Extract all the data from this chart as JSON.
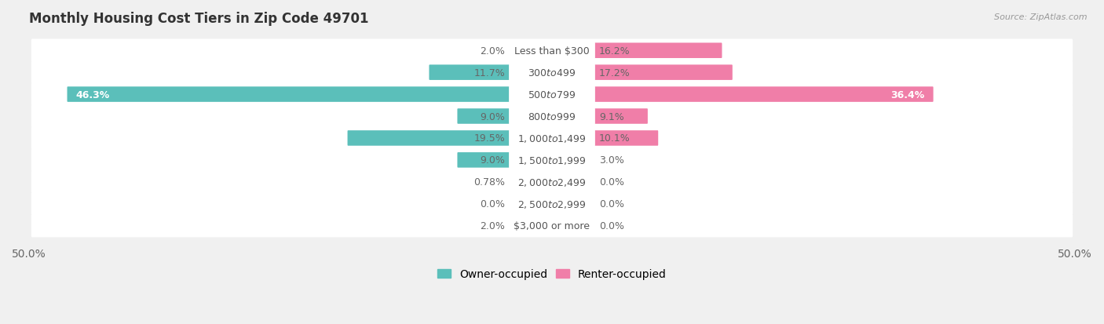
{
  "title": "Monthly Housing Cost Tiers in Zip Code 49701",
  "source": "Source: ZipAtlas.com",
  "categories": [
    "Less than $300",
    "$300 to $499",
    "$500 to $799",
    "$800 to $999",
    "$1,000 to $1,499",
    "$1,500 to $1,999",
    "$2,000 to $2,499",
    "$2,500 to $2,999",
    "$3,000 or more"
  ],
  "owner_values": [
    2.0,
    11.7,
    46.3,
    9.0,
    19.5,
    9.0,
    0.78,
    0.0,
    2.0
  ],
  "renter_values": [
    16.2,
    17.2,
    36.4,
    9.1,
    10.1,
    3.0,
    0.0,
    0.0,
    0.0
  ],
  "owner_color": "#5BBFBA",
  "renter_color": "#F07EA8",
  "owner_label": "Owner-occupied",
  "renter_label": "Renter-occupied",
  "xlim": 50.0,
  "background_color": "#f0f0f0",
  "bar_background": "#ffffff",
  "title_fontsize": 12,
  "axis_fontsize": 10,
  "label_fontsize": 9,
  "value_fontsize": 9
}
